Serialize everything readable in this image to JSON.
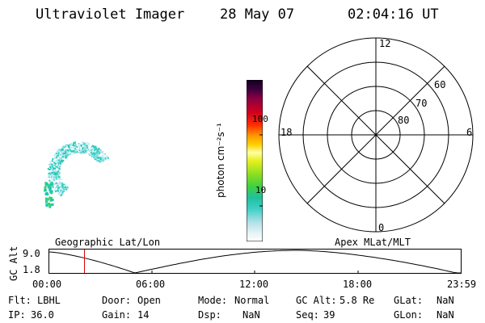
{
  "header": {
    "instrument": "Ultraviolet Imager",
    "date": "28 May 07",
    "time": "02:04:16 UT"
  },
  "colorbar": {
    "unit_label": "photon cm⁻²s⁻¹",
    "ticks": [
      "100",
      "10"
    ]
  },
  "polar": {
    "mlt_labels": {
      "top": "12",
      "left": "18",
      "right": "6",
      "bottom": "0"
    },
    "lat_labels": [
      "60",
      "70",
      "80"
    ]
  },
  "timeline": {
    "left_title": "Geographic Lat/Lon",
    "right_title": "Apex MLat/MLT",
    "axis_title": "GC Alt",
    "y_ticks": [
      "9.0",
      "1.8"
    ],
    "x_ticks": [
      "00:00",
      "06:00",
      "12:00",
      "18:00",
      "23:59"
    ],
    "current_time_marker_hours": 2.07
  },
  "status": {
    "flt_label": "Flt:",
    "flt_value": "LBHL",
    "ip_label": "IP:",
    "ip_value": "36.0",
    "door_label": "Door:",
    "door_value": "Open",
    "gain_label": "Gain:",
    "gain_value": "14",
    "mode_label": "Mode:",
    "mode_value": "Normal",
    "dsp_label": "Dsp:",
    "dsp_value": "NaN",
    "gcalt_label": "GC Alt:",
    "gcalt_value": "5.8 Re",
    "seq_label": "Seq:",
    "seq_value": "39",
    "glat_label": "GLat:",
    "glat_value": "NaN",
    "glon_label": "GLon:",
    "glon_value": "NaN"
  },
  "colors": {
    "aurora_bright": "#1ec8b4",
    "aurora_faint": "#b8e8f0",
    "aurora_green": "#3cd264",
    "marker": "#e00000"
  }
}
